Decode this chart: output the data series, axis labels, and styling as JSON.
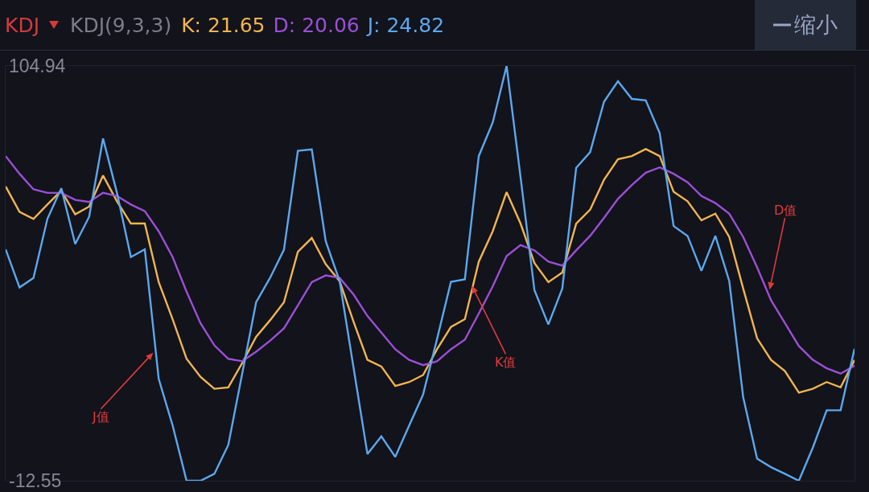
{
  "chart_data": {
    "type": "line",
    "title": "KDJ",
    "subtitle": "KDJ(9,3,3)",
    "categories": [
      null,
      null,
      null,
      null,
      null,
      null,
      null,
      null,
      null,
      null,
      null,
      null,
      null,
      null,
      null,
      null,
      null,
      null,
      null,
      null,
      null,
      null,
      null,
      null,
      null,
      null,
      null,
      null,
      null,
      null,
      null,
      null,
      null,
      null,
      null,
      null,
      null,
      null,
      null,
      null,
      null,
      null,
      null,
      null,
      null,
      null,
      null,
      null,
      null,
      null,
      null,
      null,
      null,
      null,
      null,
      null,
      null,
      null,
      null,
      null,
      null,
      null
    ],
    "series": [
      {
        "name": "K: 21.65",
        "color": "#f2b54f",
        "values": [
          70.8,
          63.6,
          61.6,
          65.7,
          69.6,
          62.9,
          65.1,
          73.9,
          66.6,
          60.3,
          60.3,
          43.7,
          33.2,
          22.0,
          16.9,
          13.5,
          13.9,
          20.8,
          28.2,
          32.9,
          38.0,
          52.3,
          56.2,
          48.8,
          44.0,
          32.5,
          21.7,
          19.8,
          14.3,
          15.4,
          17.4,
          24.7,
          31.0,
          33.2,
          49.5,
          58.1,
          69.2,
          60.3,
          49.1,
          43.7,
          46.4,
          60.3,
          64.2,
          72.7,
          78.5,
          79.4,
          81.4,
          79.4,
          69.3,
          66.6,
          61.2,
          63.1,
          56.5,
          41.9,
          27.8,
          21.7,
          18.5,
          12.4,
          13.5,
          15.4,
          13.9,
          21.65
        ]
      },
      {
        "name": "D: 20.06",
        "color": "#9c4fd6",
        "values": [
          79.4,
          74.4,
          70.0,
          69.0,
          69.0,
          67.0,
          66.4,
          69.0,
          68.1,
          65.7,
          63.8,
          58.1,
          50.8,
          41.0,
          32.1,
          25.8,
          22.0,
          21.3,
          24.0,
          27.1,
          30.6,
          37.1,
          43.7,
          45.6,
          44.9,
          40.2,
          34.1,
          29.4,
          24.7,
          21.7,
          20.2,
          21.3,
          24.7,
          27.4,
          34.8,
          42.5,
          51.1,
          54.2,
          52.7,
          49.5,
          48.4,
          52.7,
          56.8,
          61.9,
          67.3,
          71.2,
          74.7,
          76.2,
          74.4,
          72.0,
          68.1,
          66.1,
          63.1,
          56.5,
          47.9,
          38.6,
          32.1,
          25.6,
          21.7,
          19.3,
          17.8,
          20.06
        ]
      },
      {
        "name": "J: 24.82",
        "color": "#5ca8ee",
        "values": [
          53.0,
          42.2,
          44.9,
          61.6,
          70.3,
          54.5,
          62.2,
          84.4,
          69.0,
          50.8,
          53.0,
          16.3,
          3.1,
          -12.55,
          -12.55,
          -10.6,
          -2.4,
          17.8,
          38.0,
          44.9,
          52.9,
          80.9,
          81.3,
          55.3,
          44.0,
          19.5,
          -5.0,
          0.0,
          -5.8,
          3.1,
          11.9,
          27.6,
          43.8,
          44.5,
          79.4,
          88.9,
          104.94,
          73.5,
          41.4,
          31.7,
          41.9,
          76.1,
          80.5,
          94.8,
          100.6,
          95.6,
          95.2,
          85.9,
          59.6,
          56.8,
          46.9,
          56.8,
          44.0,
          11.1,
          -6.3,
          -8.7,
          -10.6,
          -12.55,
          -3.2,
          7.4,
          7.4,
          24.82
        ]
      }
    ],
    "ylim": [
      -12.55,
      104.94
    ],
    "yticks": [
      104.94,
      -12.55
    ],
    "legend": "top left",
    "tick_labels": "y",
    "marker": "none",
    "line_style": "solid",
    "annotations": [
      "J值",
      "K值",
      "D值",
      "缩小"
    ]
  }
}
